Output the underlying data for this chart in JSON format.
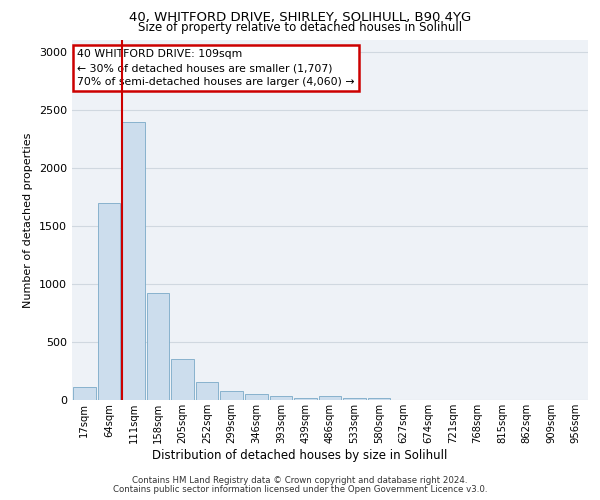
{
  "title_line1": "40, WHITFORD DRIVE, SHIRLEY, SOLIHULL, B90 4YG",
  "title_line2": "Size of property relative to detached houses in Solihull",
  "xlabel": "Distribution of detached houses by size in Solihull",
  "ylabel": "Number of detached properties",
  "bar_color": "#ccdded",
  "bar_edge_color": "#7aaac8",
  "categories": [
    "17sqm",
    "64sqm",
    "111sqm",
    "158sqm",
    "205sqm",
    "252sqm",
    "299sqm",
    "346sqm",
    "393sqm",
    "439sqm",
    "486sqm",
    "533sqm",
    "580sqm",
    "627sqm",
    "674sqm",
    "721sqm",
    "768sqm",
    "815sqm",
    "862sqm",
    "909sqm",
    "956sqm"
  ],
  "values": [
    115,
    1700,
    2390,
    920,
    350,
    155,
    80,
    55,
    35,
    15,
    32,
    15,
    20,
    0,
    0,
    0,
    0,
    0,
    0,
    0,
    0
  ],
  "annotation_title": "40 WHITFORD DRIVE: 109sqm",
  "annotation_line2": "← 30% of detached houses are smaller (1,707)",
  "annotation_line3": "70% of semi-detached houses are larger (4,060) →",
  "annotation_box_color": "#cc0000",
  "red_line_x": 1.55,
  "ylim": [
    0,
    3100
  ],
  "yticks": [
    0,
    500,
    1000,
    1500,
    2000,
    2500,
    3000
  ],
  "grid_color": "#d0d8e0",
  "background_color": "#eef2f7",
  "footer_line1": "Contains HM Land Registry data © Crown copyright and database right 2024.",
  "footer_line2": "Contains public sector information licensed under the Open Government Licence v3.0."
}
